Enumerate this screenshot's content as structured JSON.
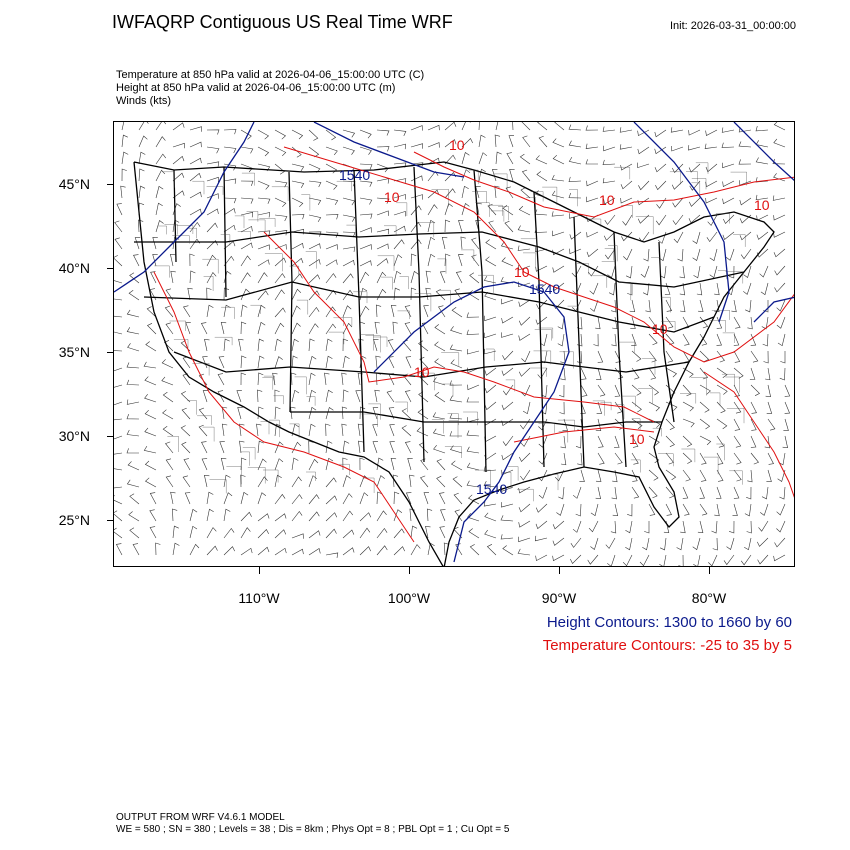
{
  "header": {
    "title": "IWFAQRP Contiguous US Real Time WRF",
    "init": "Init: 2026-03-31_00:00:00"
  },
  "fields": [
    "Temperature at 850 hPa valid at 2026-04-06_15:00:00 UTC   (C)",
    "Height at 850 hPa valid at 2026-04-06_15:00:00 UTC   (m)",
    "Winds   (kts)"
  ],
  "axes": {
    "lat_labels": [
      "45°N",
      "40°N",
      "35°N",
      "30°N",
      "25°N"
    ],
    "lon_labels": [
      "110°W",
      "100°W",
      "90°W",
      "80°W"
    ]
  },
  "contour_labels": {
    "height": [
      "1540",
      "1540",
      "1540"
    ],
    "temperature": [
      "10",
      "10",
      "10",
      "10",
      "10",
      "10",
      "10",
      "10"
    ]
  },
  "legend": {
    "height": "Height Contours: 1300 to 1660 by 60",
    "temperature": "Temperature Contours: -25 to 35 by 5"
  },
  "footer": {
    "model": "OUTPUT FROM WRF V4.6.1 MODEL",
    "params": "WE = 580 ; SN = 380 ; Levels = 38 ; Dis = 8km ; Phys Opt = 8 ; PBL Opt = 1 ; Cu Opt = 5"
  },
  "colors": {
    "height_contour": "#0b1a8c",
    "temperature_contour": "#e01010",
    "boundaries": "#000000"
  }
}
